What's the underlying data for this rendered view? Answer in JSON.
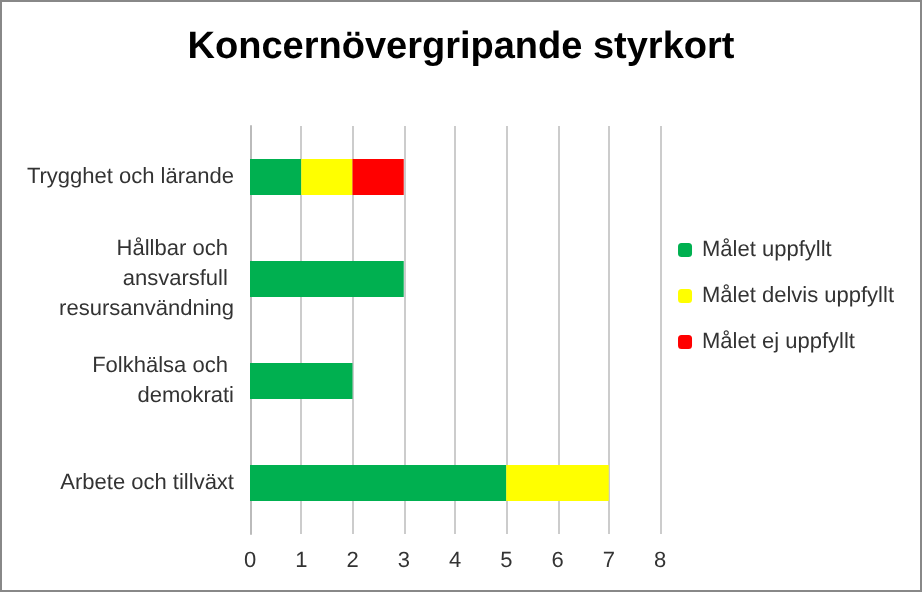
{
  "chart_data": {
    "type": "bar",
    "title": "Koncernövergripande styrkort",
    "orientation": "horizontal",
    "stacked": true,
    "categories": [
      "Trygghet och lärande",
      "Hållbar och ansvarsfull resursanvändning",
      "Folkhälsa och demokrati",
      "Arbete och tillväxt"
    ],
    "series": [
      {
        "name": "Målet uppfyllt",
        "color": "#00b050",
        "values": [
          1,
          3,
          2,
          5
        ]
      },
      {
        "name": "Målet delvis uppfyllt",
        "color": "#ffff00",
        "values": [
          1,
          0,
          0,
          2
        ]
      },
      {
        "name": "Målet ej uppfyllt",
        "color": "#ff0000",
        "values": [
          1,
          0,
          0,
          0
        ]
      }
    ],
    "xlim": [
      0,
      8
    ],
    "xticks": [
      0,
      1,
      2,
      3,
      4,
      5,
      6,
      7,
      8
    ],
    "grid": "x",
    "legend": "right"
  }
}
